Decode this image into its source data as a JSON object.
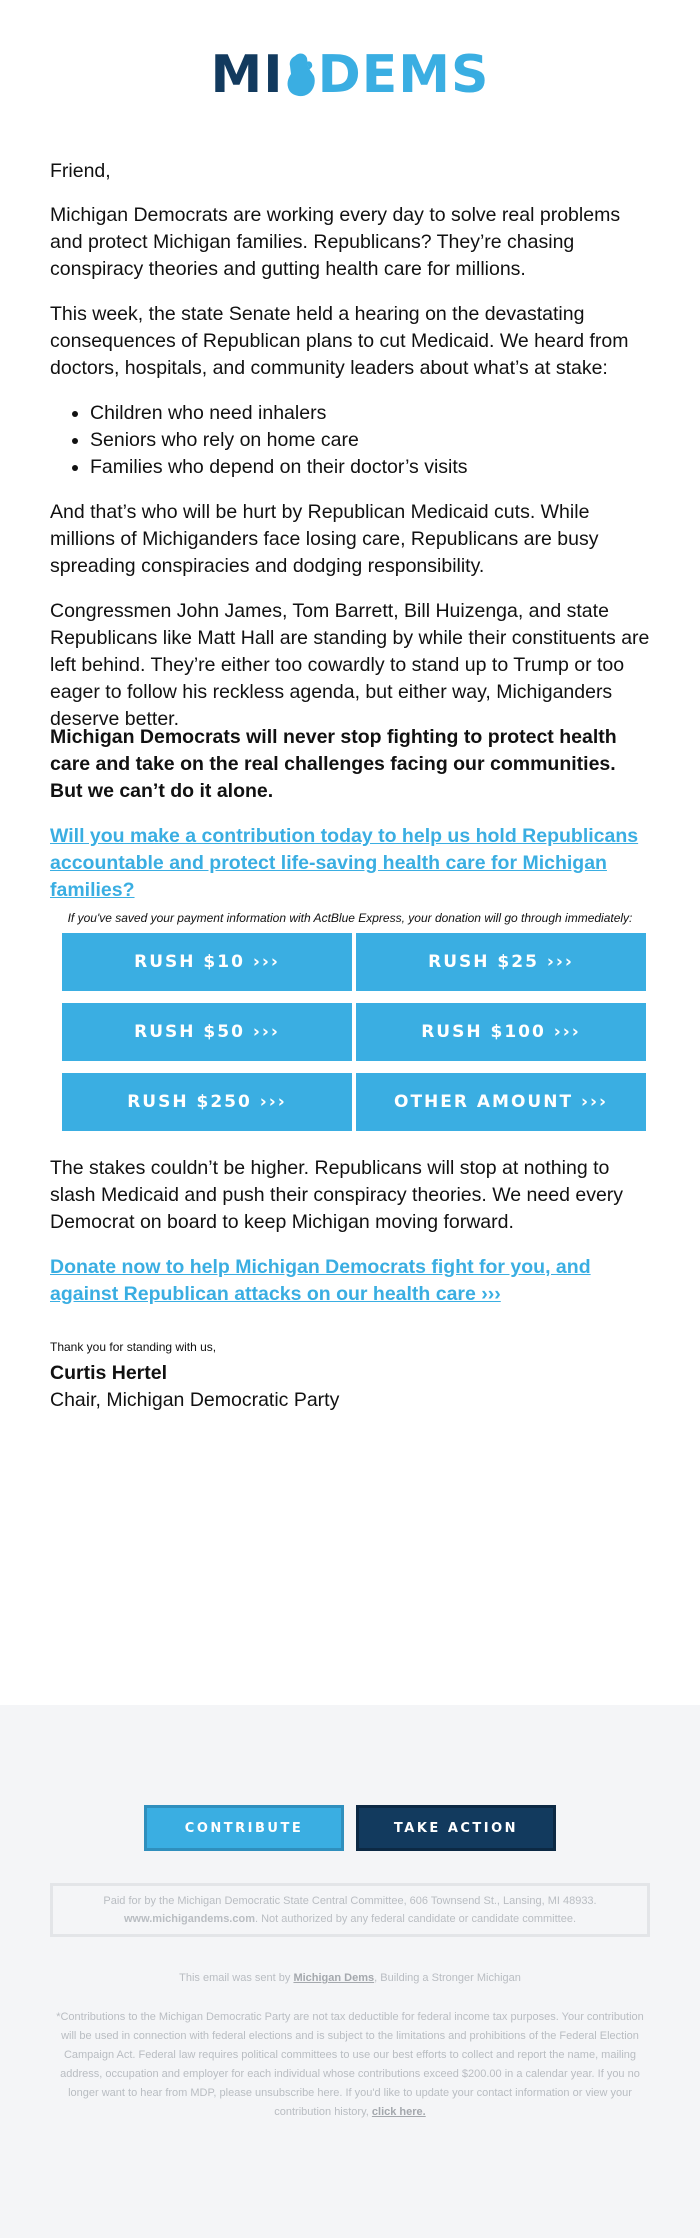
{
  "logo": {
    "part1": "MI",
    "part2": "DEMS",
    "colors": {
      "dark": "#123a5e",
      "accent": "#3aaee2"
    }
  },
  "greeting": "Friend,",
  "paragraphs": {
    "p1": "Michigan Democrats are working every day to solve real problems and protect Michigan families. Republicans? They’re chasing conspiracy theories and gutting health care for millions.",
    "p2": "This week, the state Senate held a hearing on the devastating consequences of Republican plans to cut Medicaid. We heard from doctors, hospitals, and community leaders about what’s at stake:",
    "bullets": [
      "Children who need inhalers",
      "Seniors who rely on home care",
      "Families who depend on their doctor’s visits"
    ],
    "p3": "And that’s who will be hurt by Republican Medicaid cuts. While millions of Michiganders face losing care, Republicans are busy spreading conspiracies and dodging responsibility.",
    "p4": "Congressmen John James, Tom Barrett, Bill Huizenga, and state Republicans like Matt Hall are standing by while their constituents are left behind. They’re either too cowardly to stand up to Trump or too eager to follow his reckless agenda, but either way, Michiganders deserve better.",
    "p5_bold": "Michigan Democrats will never stop fighting to protect health care and take on the real challenges facing our communities. But we can’t do it alone.",
    "link1": "Will you make a contribution today to help us hold Republicans accountable and protect life-saving health care for Michigan families?",
    "express_note": "If you've saved your payment information with ActBlue Express, your donation will go through immediately:",
    "p6": "The stakes couldn’t be higher. Republicans will stop at nothing to slash Medicaid and push their conspiracy theories. We need every Democrat on board to keep Michigan moving forward.",
    "link2": "Donate now to help Michigan Democrats fight for you, and against Republican attacks on our health care ›››",
    "thanks": "Thank you for standing with us,"
  },
  "donate_buttons": [
    "RUSH $10 ›››",
    "RUSH $25 ›››",
    "RUSH $50 ›››",
    "RUSH $100 ›››",
    "RUSH $250 ›››",
    "OTHER AMOUNT ›››"
  ],
  "signature": {
    "name": "Curtis Hertel",
    "title": "Chair, Michigan Democratic Party"
  },
  "footer": {
    "contribute": "CONTRIBUTE",
    "take_action": "TAKE ACTION",
    "paid_for_line1": "Paid for by the Michigan Democratic State Central Committee, 606 Townsend St., Lansing, MI 48933.",
    "paid_for_site": "www.michigandems.com",
    "paid_for_line2": ". Not authorized by any federal candidate or candidate committee.",
    "sent_pre": "This email was sent by ",
    "sent_link": "Michigan Dems",
    "sent_post": ", Building a Stronger Michigan",
    "disclaimer": "*Contributions to the Michigan Democratic Party are not tax deductible for federal income tax purposes. Your contribution will be used in connection with federal elections and is subject to the limitations and prohibitions of the Federal Election Campaign Act. Federal law requires political committees to use our best efforts to collect and report the name, mailing address, occupation and employer for each individual whose contributions exceed $200.00 in a calendar year. If you no longer want to hear from MDP, please unsubscribe here. If you'd like to update your contact information or view your contribution history, ",
    "click_here": "click here."
  }
}
